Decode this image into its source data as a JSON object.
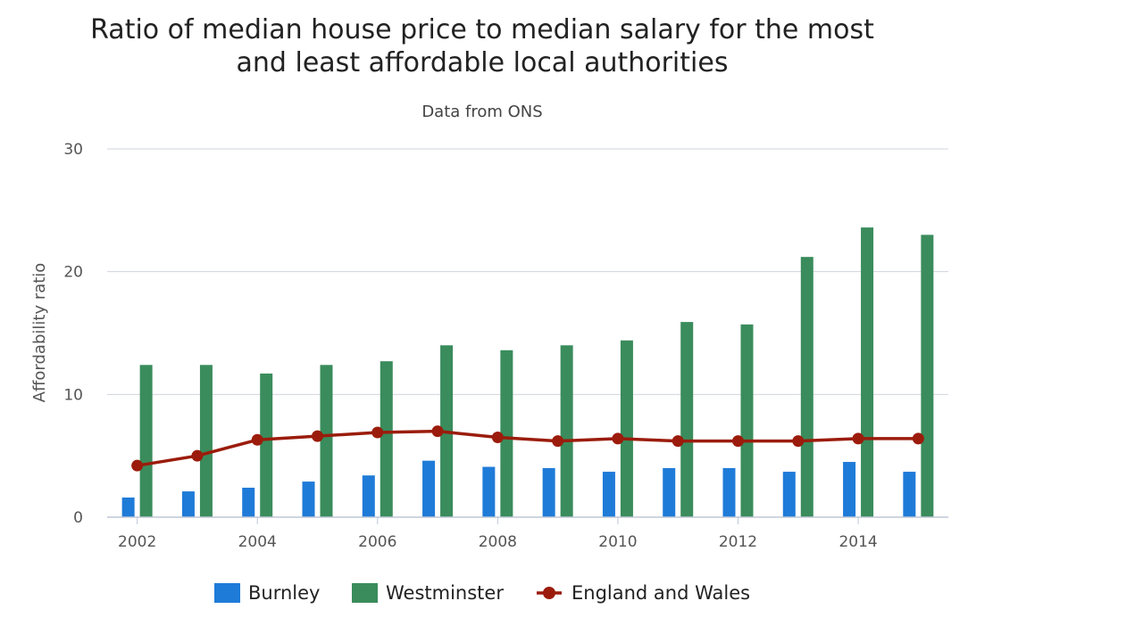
{
  "chart_data": {
    "type": "bar",
    "title_line1": "Ratio of median house price to median salary for the most",
    "title_line2": "and least affordable local authorities",
    "subtitle": "Data from ONS",
    "ylabel": "Affordability ratio",
    "xlabel": "",
    "ylim": [
      0,
      30
    ],
    "yticks": [
      0,
      10,
      20,
      30
    ],
    "grid": true,
    "legend_position": "bottom",
    "categories": [
      "2002",
      "2003",
      "2004",
      "2005",
      "2006",
      "2007",
      "2008",
      "2009",
      "2010",
      "2011",
      "2012",
      "2013",
      "2014",
      "2015"
    ],
    "xtick_labels": [
      "2002",
      "2004",
      "2006",
      "2008",
      "2010",
      "2012",
      "2014"
    ],
    "series": [
      {
        "name": "Burnley",
        "type": "bar",
        "color": "#1f7bd8",
        "values": [
          1.6,
          2.1,
          2.4,
          2.9,
          3.4,
          4.6,
          4.1,
          4.0,
          3.7,
          4.0,
          4.0,
          3.7,
          4.5,
          3.7
        ]
      },
      {
        "name": "Westminster",
        "type": "bar",
        "color": "#3a8c5c",
        "values": [
          12.4,
          12.4,
          11.7,
          12.4,
          12.7,
          14.0,
          13.6,
          14.0,
          14.4,
          15.9,
          15.7,
          21.2,
          23.6,
          23.0
        ]
      },
      {
        "name": "England and Wales",
        "type": "line",
        "color": "#9b1c0c",
        "values": [
          4.2,
          5.0,
          6.3,
          6.6,
          6.9,
          7.0,
          6.5,
          6.2,
          6.4,
          6.2,
          6.2,
          6.2,
          6.4,
          6.4
        ]
      }
    ]
  }
}
